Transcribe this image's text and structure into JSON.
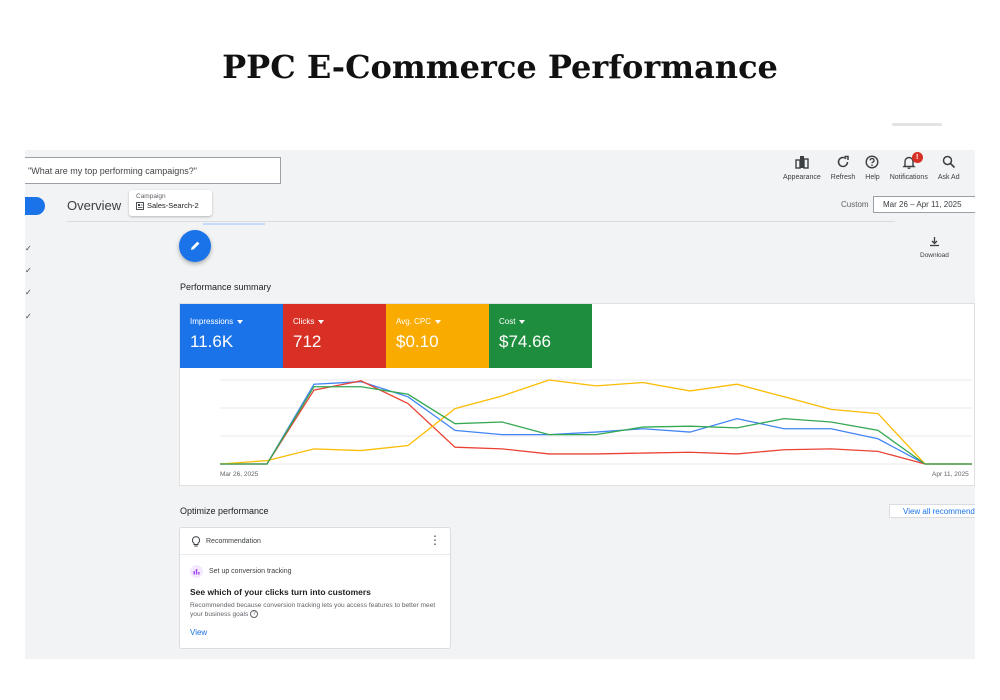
{
  "page_title": "PPC E-Commerce Performance",
  "header": {
    "search_placeholder": "\"What are my top performing campaigns?\"",
    "toolbar": [
      {
        "label": "Appearance",
        "icon": "appearance-icon"
      },
      {
        "label": "Refresh",
        "icon": "refresh-icon"
      },
      {
        "label": "Help",
        "icon": "help-icon"
      },
      {
        "label": "Notifications",
        "icon": "bell-icon",
        "badge": "!"
      },
      {
        "label": "Ask Ad",
        "icon": "search-icon"
      }
    ],
    "overview_label": "Overview",
    "campaign": {
      "label": "Campaign",
      "value": "Sales-Search-2"
    },
    "date_range_label": "Custom",
    "date_range_value": "Mar 26 – Apr 11, 2025"
  },
  "sidebar": {
    "checks": [
      "✓",
      "✓",
      "✓",
      "✓"
    ]
  },
  "download_label": "Download",
  "performance": {
    "title": "Performance summary",
    "metrics": [
      {
        "label": "Impressions",
        "value": "11.6K",
        "color": "#1a73e8"
      },
      {
        "label": "Clicks",
        "value": "712",
        "color": "#d93025"
      },
      {
        "label": "Avg. CPC",
        "value": "$0.10",
        "color": "#f9ab00"
      },
      {
        "label": "Cost",
        "value": "$74.66",
        "color": "#1e8e3e"
      }
    ]
  },
  "chart_data": {
    "type": "line",
    "x_labels": [
      "Mar 26, 2025",
      "Apr 11, 2025"
    ],
    "x_count": 17,
    "ylim": [
      0,
      100
    ],
    "grid": true,
    "series": [
      {
        "color": "#4285f4",
        "values": [
          0,
          0,
          95,
          98,
          80,
          40,
          35,
          35,
          38,
          42,
          38,
          54,
          42,
          42,
          30,
          0,
          0
        ]
      },
      {
        "color": "#ea4335",
        "values": [
          0,
          0,
          88,
          99,
          72,
          20,
          18,
          12,
          12,
          13,
          14,
          12,
          17,
          18,
          15,
          0,
          0
        ]
      },
      {
        "color": "#fbbc04",
        "values": [
          0,
          4,
          18,
          16,
          22,
          66,
          81,
          100,
          93,
          97,
          87,
          95,
          80,
          65,
          60,
          0,
          0
        ]
      },
      {
        "color": "#34a853",
        "values": [
          0,
          0,
          92,
          92,
          83,
          48,
          50,
          35,
          35,
          44,
          45,
          43,
          54,
          50,
          40,
          0,
          0
        ]
      }
    ]
  },
  "optimize": {
    "title": "Optimize performance",
    "view_all_label": "View all recommenda",
    "card": {
      "header_label": "Recommendation",
      "task_label": "Set up conversion tracking",
      "heading": "See which of your clicks turn into customers",
      "description": "Recommended because conversion tracking lets you access features to better meet your business goals",
      "help_glyph": "?",
      "link_label": "View"
    }
  }
}
